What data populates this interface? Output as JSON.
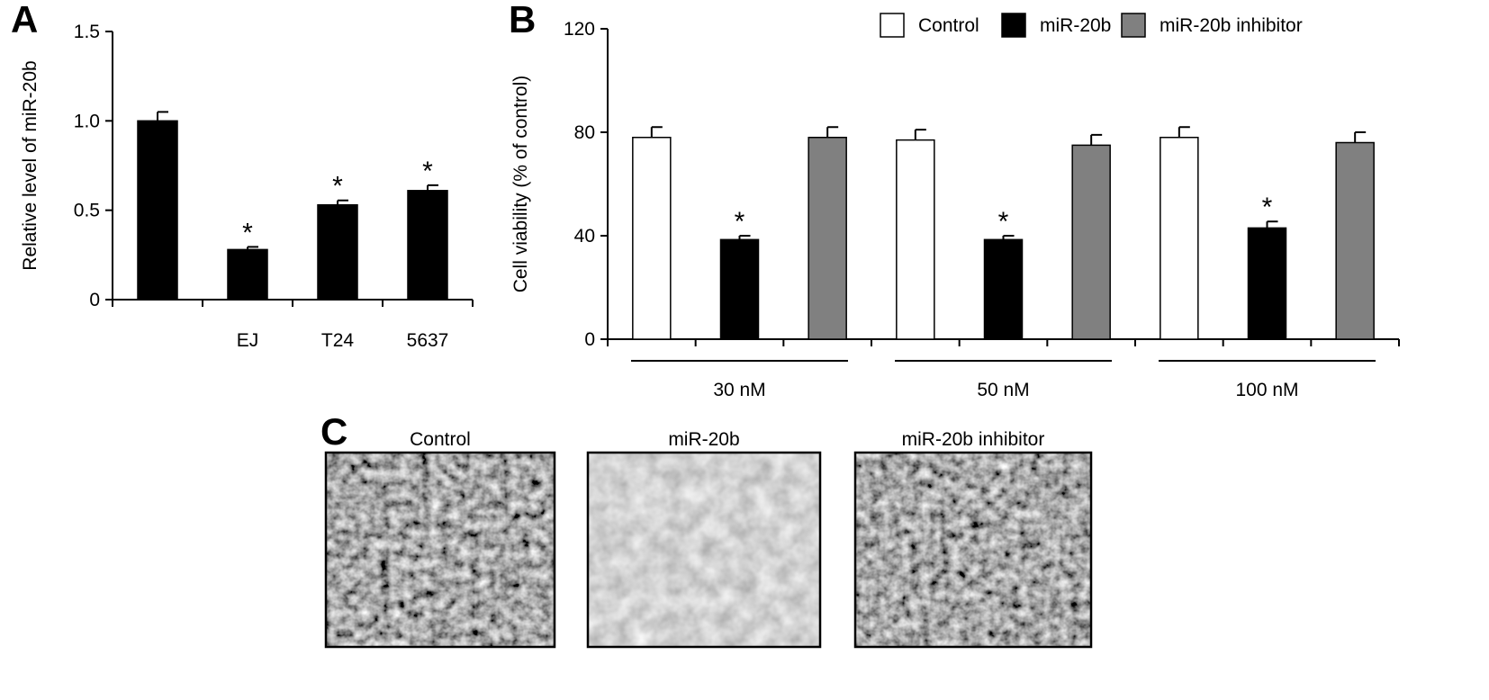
{
  "panels": {
    "a": "A",
    "b": "B",
    "c": "C"
  },
  "chart_data": [
    {
      "type": "bar",
      "panel": "A",
      "categories": [
        "",
        "EJ",
        "T24",
        "5637"
      ],
      "values": [
        1.0,
        0.28,
        0.53,
        0.61
      ],
      "errors": [
        0.05,
        0.015,
        0.025,
        0.03
      ],
      "significant": [
        false,
        true,
        true,
        true
      ],
      "significance_marker": "*",
      "ylabel": "Relative level of miR-20b",
      "xlabel": "",
      "ylim": [
        0,
        1.5
      ],
      "yticks": [
        0,
        0.5,
        1.0,
        1.5
      ],
      "ytick_labels": [
        "0",
        "0.5",
        "1.0",
        "1.5"
      ],
      "bar_color": "#000000",
      "grid": false
    },
    {
      "type": "bar",
      "panel": "B",
      "groups": [
        "30 nM",
        "50 nM",
        "100 nM"
      ],
      "series": [
        {
          "name": "Control",
          "values": [
            78,
            77,
            78
          ],
          "errors": [
            4,
            4,
            4
          ],
          "color": "#ffffff",
          "significant": [
            false,
            false,
            false
          ]
        },
        {
          "name": "miR-20b",
          "values": [
            38.5,
            38.5,
            43
          ],
          "errors": [
            1.5,
            1.5,
            2.5
          ],
          "color": "#000000",
          "significant": [
            true,
            true,
            true
          ]
        },
        {
          "name": "miR-20b inhibitor",
          "values": [
            78,
            75,
            76
          ],
          "errors": [
            4,
            4,
            4
          ],
          "color": "#808080",
          "significant": [
            false,
            false,
            false
          ]
        }
      ],
      "significance_marker": "*",
      "ylabel": "Cell viability (% of control)",
      "xlabel": "",
      "ylim": [
        0,
        120
      ],
      "yticks": [
        0,
        40,
        80,
        120
      ],
      "ytick_labels": [
        "0",
        "40",
        "80",
        "120"
      ],
      "legend_position": "top-right",
      "grid": false
    }
  ],
  "micrographs": {
    "panel": "C",
    "items": [
      {
        "title": "Control",
        "density": "dense"
      },
      {
        "title": "miR-20b",
        "density": "sparse"
      },
      {
        "title": "miR-20b inhibitor",
        "density": "dense"
      }
    ]
  }
}
